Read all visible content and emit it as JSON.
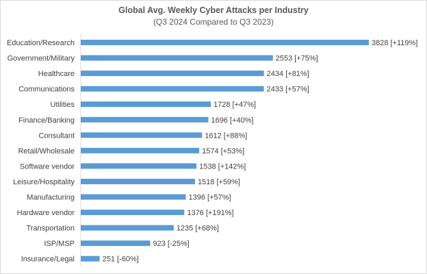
{
  "chart_data": {
    "type": "bar",
    "orientation": "horizontal",
    "title": "Global Avg. Weekly Cyber Attacks per Industry",
    "subtitle": "(Q3 2024 Compared to Q3 2023)",
    "categories": [
      "Education/Research",
      "Government/Military",
      "Healthcare",
      "Communications",
      "Utilities",
      "Finance/Banking",
      "Consultant",
      "Retail/Wholesale",
      "Software vendor",
      "Leisure/Hospitality",
      "Manufacturing",
      "Hardware vendor",
      "Transportation",
      "ISP/MSP",
      "Insurance/Legal"
    ],
    "values": [
      3828,
      2553,
      2434,
      2433,
      1728,
      1696,
      1612,
      1574,
      1538,
      1518,
      1396,
      1376,
      1235,
      923,
      251
    ],
    "data_labels": [
      "3828 [+119%]",
      "2553 [+75%]",
      "2434 [+81%]",
      "2433 [+57%]",
      "1728 [+47%]",
      "1696 [+40%]",
      "1612 [+88%]",
      "1574 [+53%]",
      "1538 [+142%]",
      "1518 [+59%]",
      "1396 [+57%]",
      "1376 [+191%]",
      "1235 [+68%]",
      "923 [-25%]",
      "251 [-60%]"
    ],
    "xlim": [
      0,
      3828
    ],
    "grid": false,
    "legend": "none",
    "bar_color": "#5b9bd5"
  }
}
